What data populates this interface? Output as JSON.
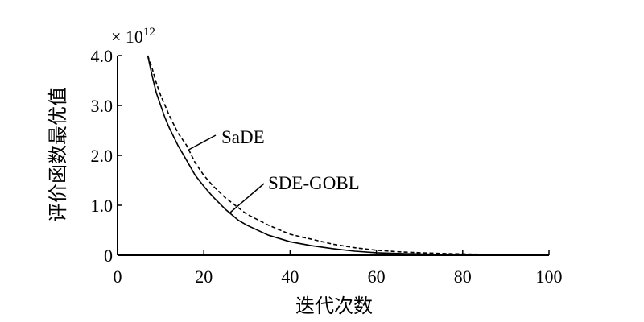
{
  "chart_data": {
    "type": "line",
    "scale_label": "× 10",
    "scale_exponent": "12",
    "xlabel": "迭代次数",
    "ylabel": "评价函数最优值",
    "xlim": [
      0,
      100
    ],
    "ylim": [
      0,
      4.0
    ],
    "x_ticks": [
      0,
      20,
      40,
      60,
      80,
      100
    ],
    "x_tick_labels": [
      "0",
      "20",
      "40",
      "60",
      "80",
      "100"
    ],
    "y_ticks": [
      0,
      1.0,
      2.0,
      3.0,
      4.0
    ],
    "y_tick_labels": [
      "0",
      "1.0",
      "2.0",
      "3.0",
      "4.0"
    ],
    "grid": false,
    "series": [
      {
        "name": "SaDE",
        "style": "dashed",
        "x": [
          7,
          8,
          9,
          10,
          11,
          12,
          14,
          16,
          18,
          20,
          22,
          25,
          28,
          30,
          35,
          40,
          45,
          50,
          55,
          60,
          65,
          70,
          75,
          80,
          85,
          90,
          95,
          100
        ],
        "y": [
          4.0,
          3.75,
          3.45,
          3.2,
          3.0,
          2.8,
          2.45,
          2.2,
          1.85,
          1.6,
          1.4,
          1.15,
          0.95,
          0.82,
          0.6,
          0.42,
          0.32,
          0.22,
          0.15,
          0.1,
          0.07,
          0.05,
          0.035,
          0.025,
          0.018,
          0.013,
          0.01,
          0.008
        ]
      },
      {
        "name": "SDE-GOBL",
        "style": "solid",
        "x": [
          7,
          8,
          9,
          10,
          11,
          12,
          14,
          16,
          18,
          20,
          22,
          25,
          28,
          30,
          35,
          40,
          45,
          50,
          55,
          60,
          65,
          70,
          75,
          80,
          85,
          90,
          95,
          100
        ],
        "y": [
          4.0,
          3.6,
          3.25,
          3.0,
          2.75,
          2.55,
          2.2,
          1.9,
          1.6,
          1.38,
          1.18,
          0.92,
          0.7,
          0.6,
          0.4,
          0.27,
          0.19,
          0.13,
          0.08,
          0.05,
          0.035,
          0.025,
          0.018,
          0.012,
          0.009,
          0.006,
          0.004,
          0.003
        ]
      }
    ],
    "annotations": [
      {
        "text": "SaDE",
        "series": "SaDE",
        "at_x": 16.5
      },
      {
        "text": "SDE-GOBL",
        "series": "SDE-GOBL",
        "at_x": 26
      }
    ]
  }
}
